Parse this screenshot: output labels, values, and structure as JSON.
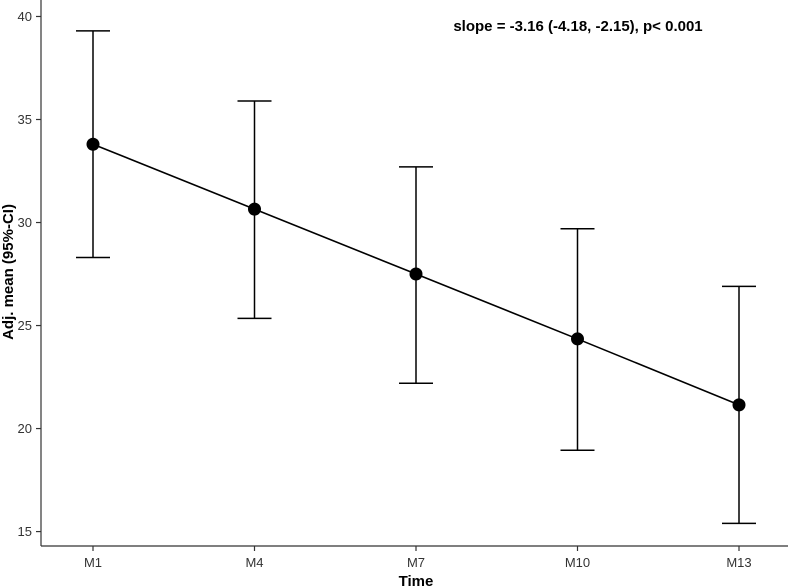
{
  "chart_data": {
    "type": "line",
    "title": "",
    "xlabel": "Time",
    "ylabel": "Adj. mean (95%-CI)",
    "categories": [
      "M1",
      "M4",
      "M7",
      "M10",
      "M13"
    ],
    "series": [
      {
        "values": [
          33.8,
          30.65,
          27.5,
          24.35,
          21.15
        ],
        "ci_lower": [
          28.3,
          25.35,
          22.2,
          18.95,
          15.4
        ],
        "ci_upper": [
          39.3,
          35.9,
          32.7,
          29.7,
          26.9
        ]
      }
    ],
    "yticks": [
      15,
      20,
      25,
      30,
      35,
      40
    ],
    "ylim": [
      14.3,
      40.8
    ],
    "annotation": "slope = -3.16 (-4.18, -2.15), p< 0.001",
    "legend": "none",
    "grid": false,
    "colors": {
      "line": "#000000",
      "point": "#000000",
      "axis": "#333333"
    }
  }
}
